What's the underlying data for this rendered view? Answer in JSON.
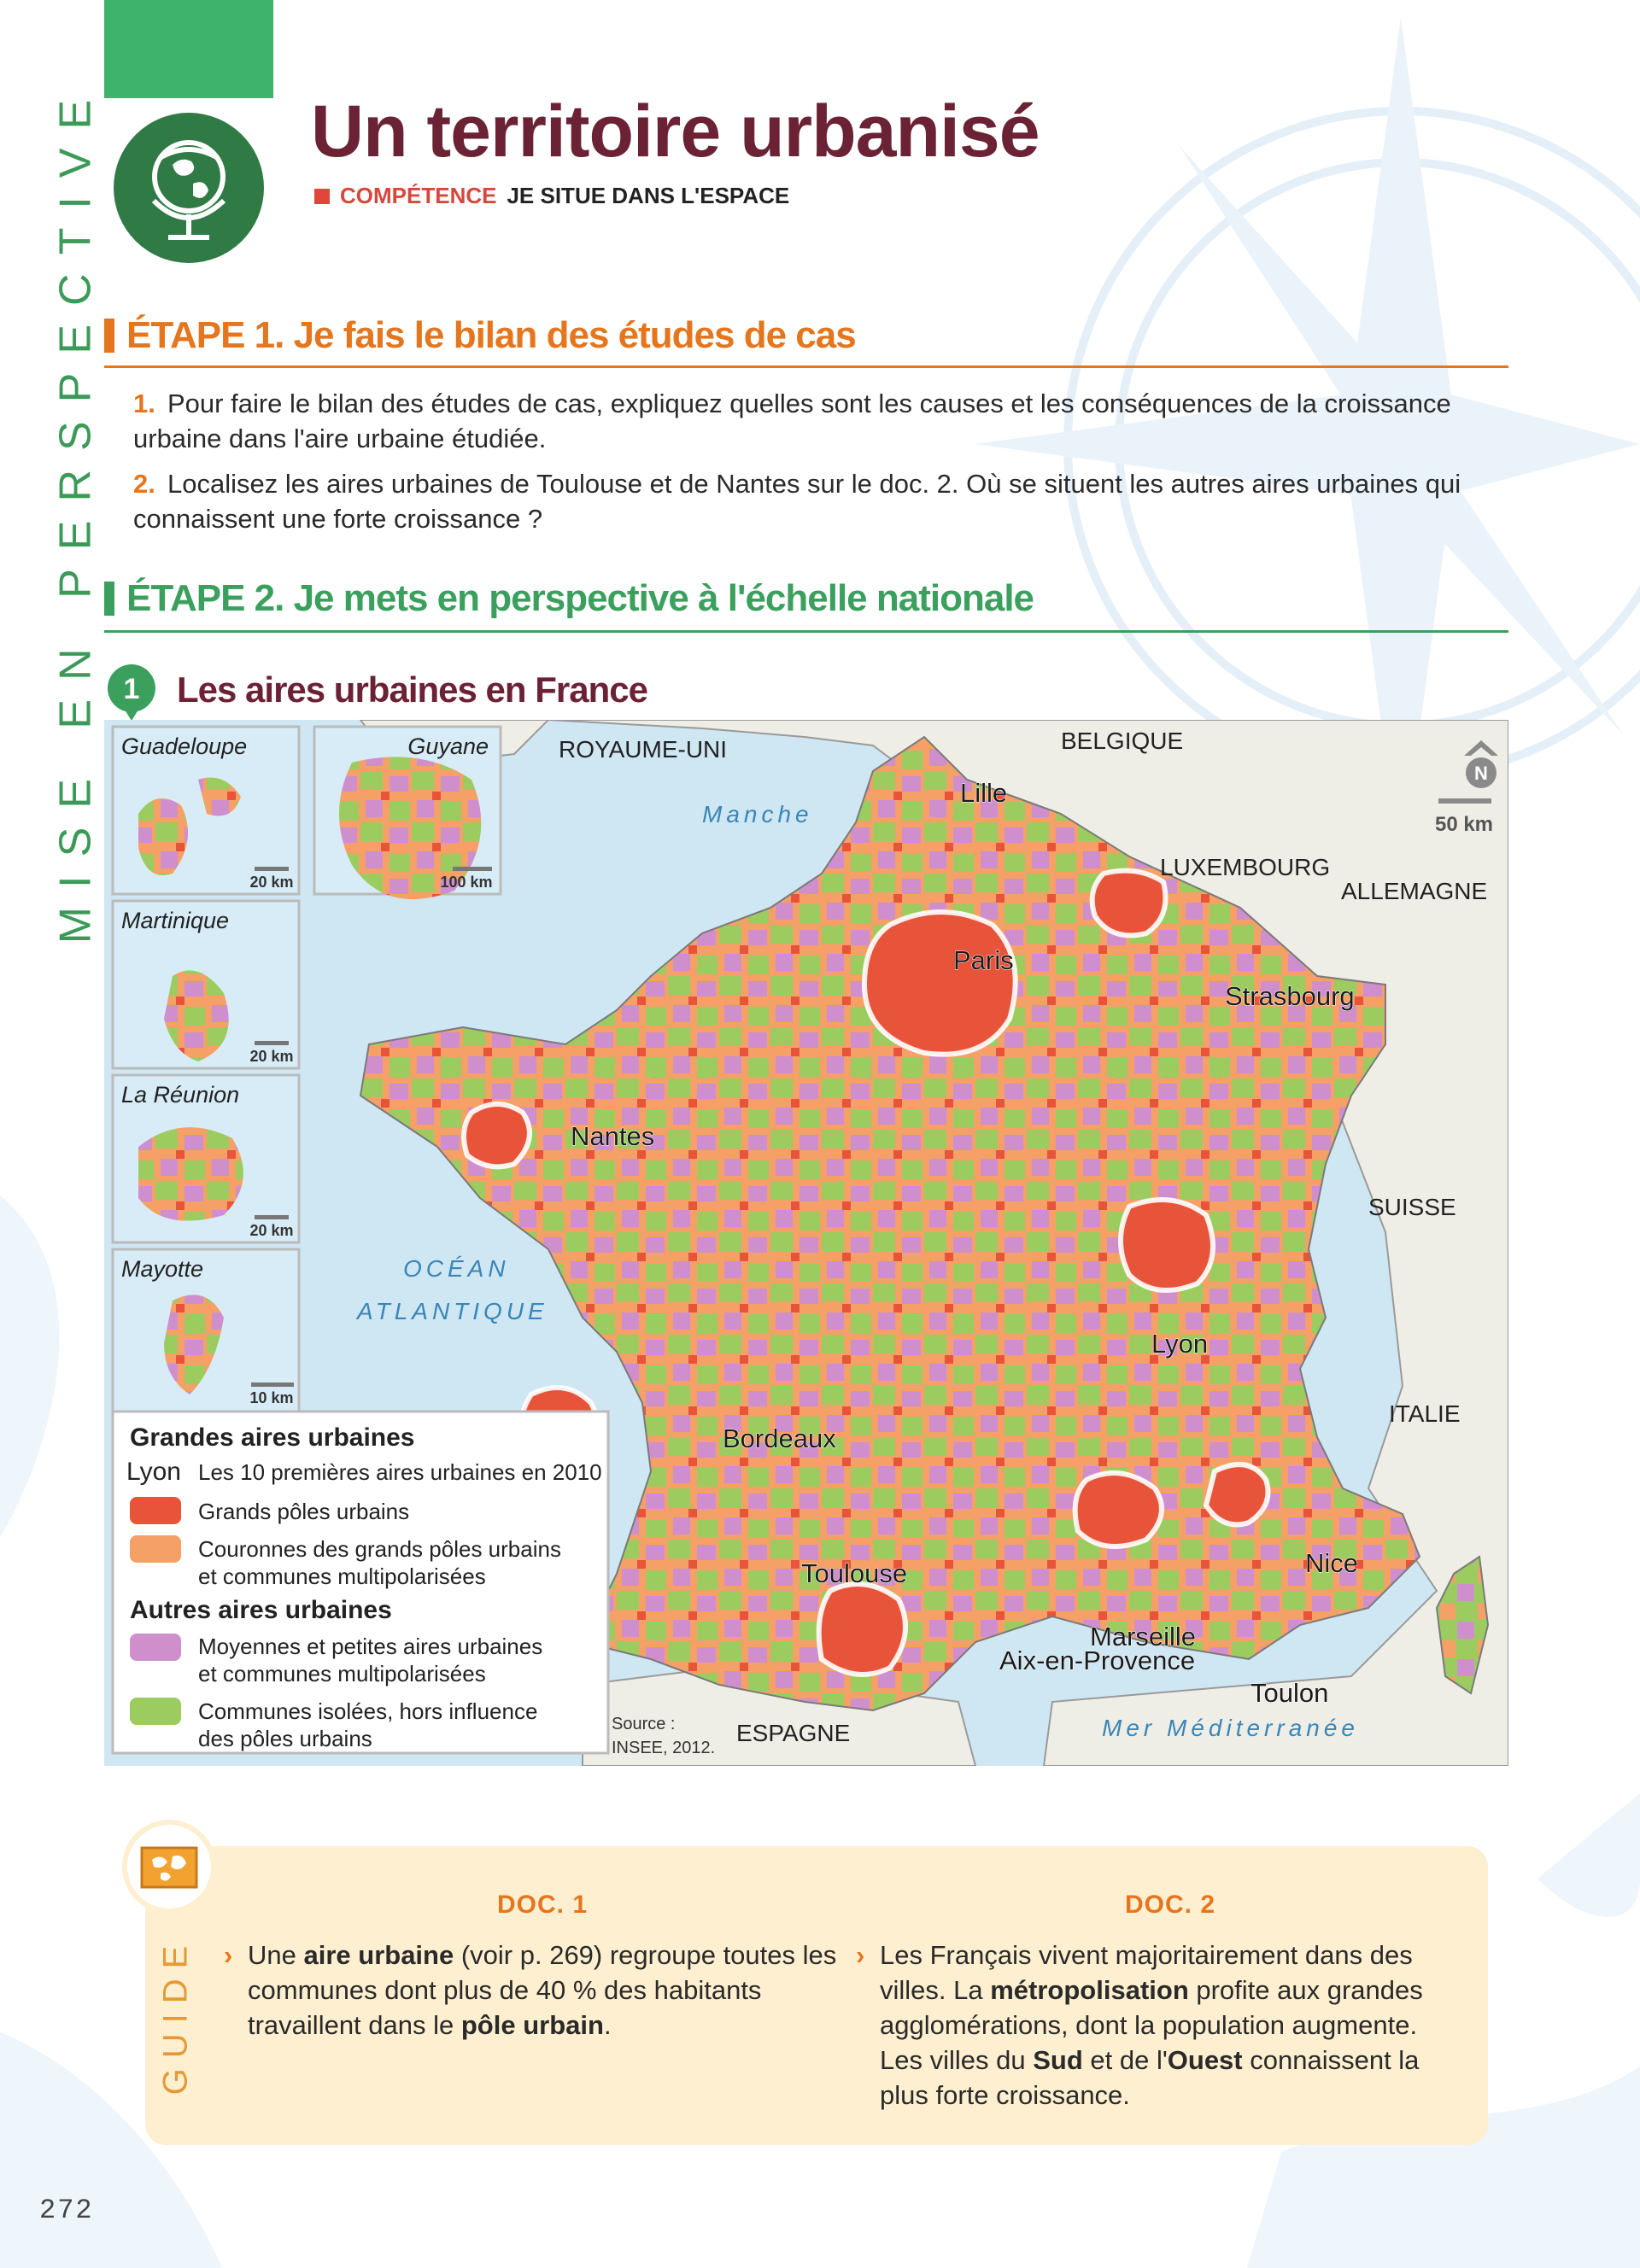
{
  "header": {
    "side_label": "MISE EN PERSPECTIVE",
    "title": "Un territoire urbanisé",
    "competence_label": "COMPÉTENCE",
    "competence_text": "JE SITUE DANS L'ESPACE"
  },
  "etape1": {
    "heading": "ÉTAPE 1. Je fais le bilan des études de cas",
    "questions": [
      {
        "num": "1.",
        "text": "Pour faire le bilan des études de cas, expliquez quelles sont les causes et les conséquences de la croissance urbaine dans l'aire urbaine étudiée."
      },
      {
        "num": "2.",
        "text": "Localisez les aires urbaines de Toulouse et de Nantes sur le doc. 2. Où se situent les autres aires urbaines qui connaissent une forte croissance ?"
      }
    ]
  },
  "etape2": {
    "heading": "ÉTAPE 2. Je mets en perspective à l'échelle nationale"
  },
  "doc1": {
    "number": "1",
    "title": "Les aires urbaines en France",
    "insets": [
      {
        "name": "Guadeloupe",
        "scale": "20 km"
      },
      {
        "name": "Guyane",
        "scale": "100 km"
      },
      {
        "name": "Martinique",
        "scale": "20 km"
      },
      {
        "name": "La Réunion",
        "scale": "20 km"
      },
      {
        "name": "Mayotte",
        "scale": "10 km"
      }
    ],
    "countries": [
      "ROYAUME-UNI",
      "BELGIQUE",
      "LUXEMBOURG",
      "ALLEMAGNE",
      "SUISSE",
      "ITALIE",
      "ESPAGNE"
    ],
    "seas": [
      "Manche",
      "OCÉAN",
      "ATLANTIQUE",
      "Mer Méditerranée"
    ],
    "cities": [
      "Lille",
      "Paris",
      "Strasbourg",
      "Nantes",
      "Lyon",
      "Bordeaux",
      "Toulouse",
      "Nice",
      "Marseille",
      "Aix-en-Provence",
      "Toulon"
    ],
    "scale": "50 km",
    "north": "N",
    "source": [
      "Source :",
      "INSEE, 2012."
    ],
    "legend": {
      "title": "Grandes aires urbaines",
      "sample_city": "Lyon",
      "sample_text": "Les 10 premières aires urbaines en 2010",
      "items": [
        {
          "color": "#e8543a",
          "lines": [
            "Grands pôles urbains"
          ]
        },
        {
          "color": "#f4a066",
          "lines": [
            "Couronnes des grands pôles urbains",
            "et communes multipolarisées"
          ]
        }
      ],
      "title2": "Autres aires urbaines",
      "items2": [
        {
          "color": "#cf8fcd",
          "lines": [
            "Moyennes et petites aires urbaines",
            "et communes multipolarisées"
          ]
        },
        {
          "color": "#9ccc5f",
          "lines": [
            "Communes isolées, hors influence",
            "des pôles urbains"
          ]
        }
      ]
    }
  },
  "guide": {
    "side_label": "GUIDE",
    "doc1": {
      "heading": "DOC. 1",
      "parts": [
        "Une ",
        "aire urbaine",
        " (voir p. 269) regroupe toutes les communes dont plus de 40 % des habitants travaillent dans le ",
        "pôle urbain",
        "."
      ]
    },
    "doc2": {
      "heading": "DOC. 2",
      "parts": [
        "Les Français vivent majoritairement dans des villes. La ",
        "métropolisation",
        " profite aux grandes agglomérations, dont la population augmente. Les villes du ",
        "Sud",
        " et de l'",
        "Ouest",
        " connaissent la plus forte croissance."
      ]
    }
  },
  "page_number": "272"
}
